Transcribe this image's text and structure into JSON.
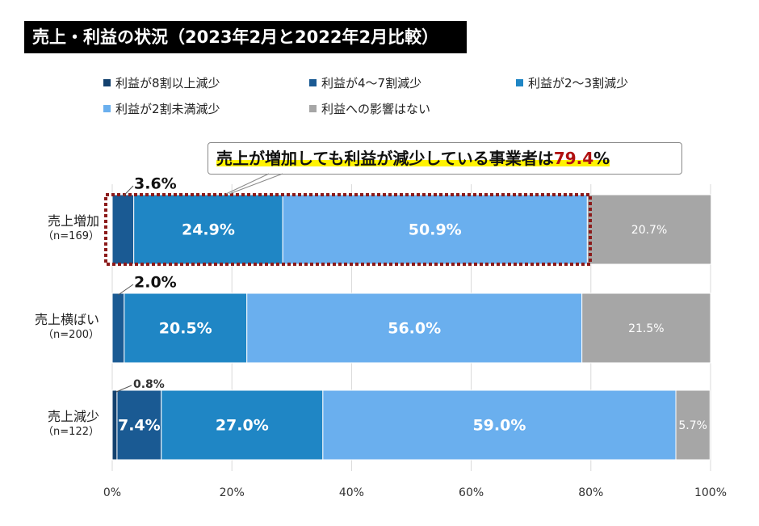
{
  "title": "売上・利益の状況（2023年2月と2022年2月比較）",
  "callout": {
    "text_prefix": "売上が増加しても利益が減少している事業者は",
    "value": "79.4",
    "suffix": "%"
  },
  "legend": [
    {
      "label": "利益が8割以上減少",
      "color": "#13416e"
    },
    {
      "label": "利益が4～7割減少",
      "color": "#1a5a93"
    },
    {
      "label": "利益が2～3割減少",
      "color": "#1f86c5"
    },
    {
      "label": "利益が2割未満減少",
      "color": "#6aafee"
    },
    {
      "label": "利益への影響はない",
      "color": "#a6a6a6"
    }
  ],
  "rows": [
    {
      "name": "売上増加",
      "n": "（n=169）"
    },
    {
      "name": "売上横ばい",
      "n": "（n=200）"
    },
    {
      "name": "売上減少",
      "n": "（n=122）"
    }
  ],
  "chart_data": {
    "type": "bar",
    "orientation": "horizontal",
    "stacked": true,
    "categories": [
      "売上増加（n=169）",
      "売上横ばい（n=200）",
      "売上減少（n=122）"
    ],
    "series": [
      {
        "name": "利益が8割以上減少",
        "values": [
          0,
          0,
          0.8
        ]
      },
      {
        "name": "利益が4～7割減少",
        "values": [
          3.6,
          2.0,
          7.4
        ]
      },
      {
        "name": "利益が2～3割減少",
        "values": [
          24.9,
          20.5,
          27.0
        ]
      },
      {
        "name": "利益が2割未満減少",
        "values": [
          50.9,
          56.0,
          59.0
        ]
      },
      {
        "name": "利益への影響はない",
        "values": [
          20.7,
          21.5,
          5.7
        ]
      }
    ],
    "value_labels": [
      [
        "",
        "3.6%",
        "24.9%",
        "50.9%",
        "20.7%"
      ],
      [
        "",
        "2.0%",
        "20.5%",
        "56.0%",
        "21.5%"
      ],
      [
        "0.8%",
        "7.4%",
        "27.0%",
        "59.0%",
        "5.7%"
      ]
    ],
    "xlim": [
      0,
      100
    ],
    "xticks": [
      "0%",
      "20%",
      "40%",
      "60%",
      "80%",
      "100%"
    ],
    "grid": true,
    "legend_position": "top"
  }
}
